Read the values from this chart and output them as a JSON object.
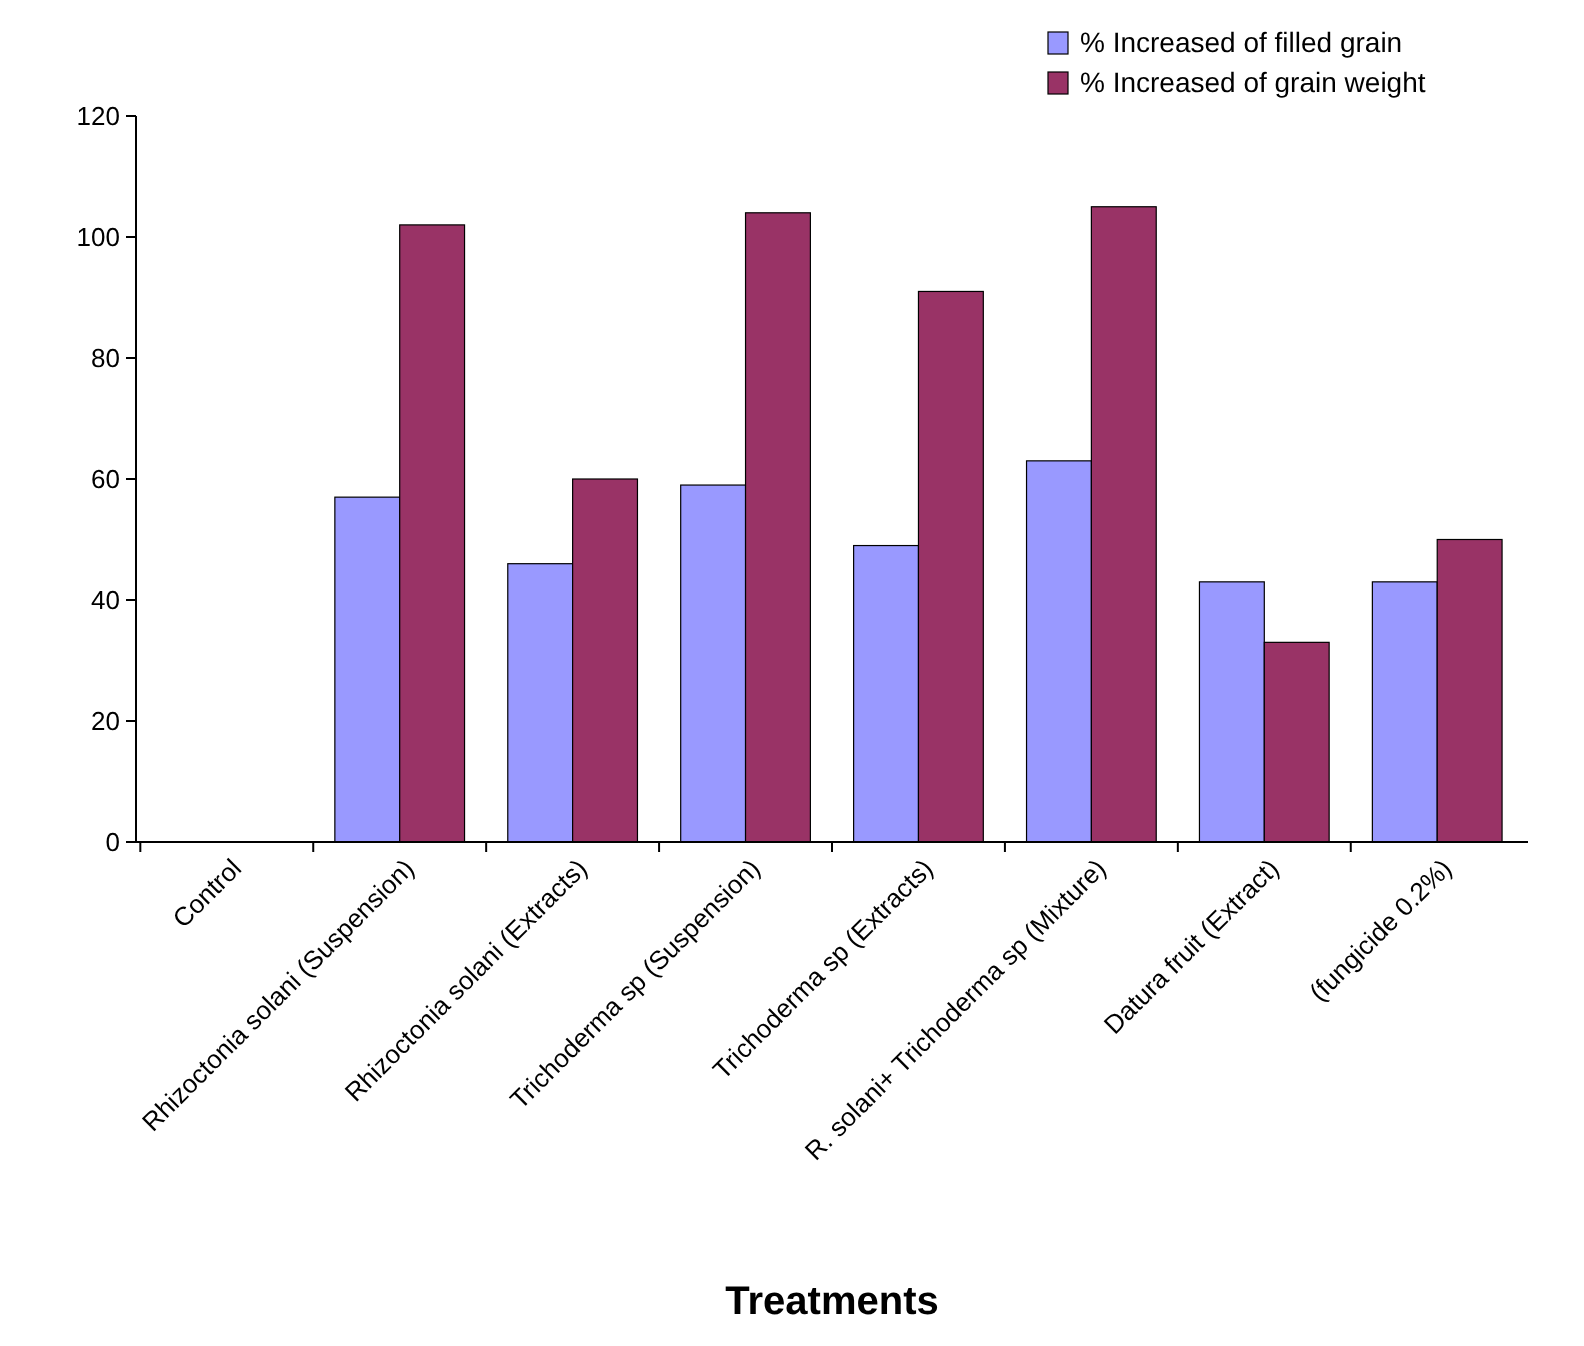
{
  "chart_data": {
    "type": "bar",
    "xlabel": "Treatments",
    "categories": [
      "Control",
      "Rhizoctonia solani (Suspension)",
      "Rhizoctonia solani (Extracts)",
      "Trichoderma sp (Suspension)",
      "Trichoderma sp (Extracts)",
      "R. solani+ Trichoderma sp (Mixture)",
      "Datura fruit (Extract)",
      "(fungicide 0.2%)"
    ],
    "series": [
      {
        "name": "% Increased of filled grain",
        "color": "#9999ff",
        "values": [
          0,
          57,
          46,
          59,
          49,
          63,
          43,
          43
        ]
      },
      {
        "name": "% Increased of grain weight",
        "color": "#993366",
        "values": [
          0,
          102,
          60,
          104,
          91,
          105,
          33,
          50
        ]
      }
    ],
    "ylim": [
      0,
      120
    ],
    "yticks": [
      0,
      20,
      40,
      60,
      80,
      100,
      120
    ],
    "grid": false,
    "legend": "top right"
  }
}
